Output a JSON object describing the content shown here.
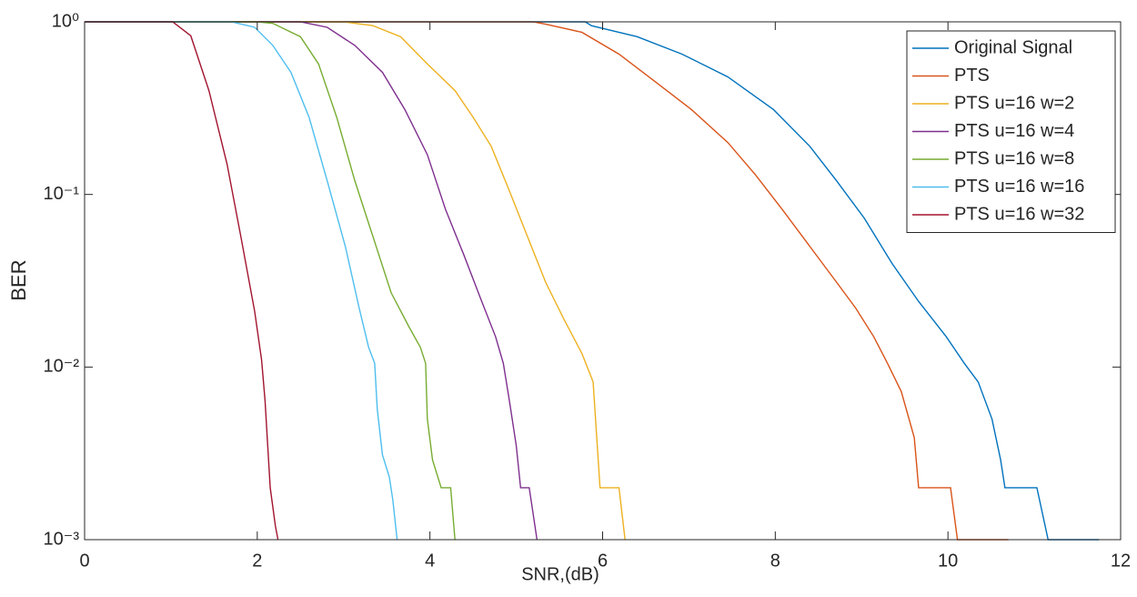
{
  "chart_data": {
    "type": "line",
    "xlabel": "SNR,(dB)",
    "ylabel": "BER",
    "yscale": "log",
    "xlim": [
      0,
      12
    ],
    "ylim": [
      0.001,
      1
    ],
    "xticks": [
      0,
      2,
      4,
      6,
      8,
      10,
      12
    ],
    "yticks": [
      {
        "value": 0.001,
        "label": "10⁻³"
      },
      {
        "value": 0.01,
        "label": "10⁻²"
      },
      {
        "value": 0.1,
        "label": "10⁻¹"
      },
      {
        "value": 1,
        "label": "10⁰"
      }
    ],
    "legend": "upper right",
    "series": [
      {
        "name": "Original Signal",
        "color": "#0072BD",
        "x": [
          0,
          5.8,
          5.87,
          6.4,
          6.92,
          7.45,
          7.98,
          8.4,
          8.71,
          9.03,
          9.35,
          9.66,
          9.98,
          10.19,
          10.35,
          10.51,
          10.61,
          10.66,
          11.03,
          11.16,
          11.75
        ],
        "values": [
          1,
          1,
          0.95,
          0.82,
          0.65,
          0.48,
          0.31,
          0.19,
          0.12,
          0.073,
          0.04,
          0.024,
          0.015,
          0.0105,
          0.0082,
          0.005,
          0.0029,
          0.002,
          0.002,
          0.001,
          0.001
        ]
      },
      {
        "name": "PTS",
        "color": "#D95319",
        "x": [
          0,
          5.2,
          5.34,
          5.76,
          6.19,
          6.61,
          7.03,
          7.45,
          7.77,
          8.08,
          8.4,
          8.71,
          8.93,
          9.14,
          9.3,
          9.46,
          9.61,
          9.66,
          10.03,
          10.11,
          10.7
        ],
        "values": [
          1,
          1,
          0.97,
          0.87,
          0.65,
          0.45,
          0.31,
          0.2,
          0.13,
          0.082,
          0.05,
          0.031,
          0.022,
          0.015,
          0.0105,
          0.0072,
          0.0039,
          0.002,
          0.002,
          0.001,
          0.001
        ]
      },
      {
        "name": "PTS u=16 w=2",
        "color": "#EDB120",
        "x": [
          0,
          3.0,
          3.34,
          3.66,
          3.97,
          4.29,
          4.5,
          4.71,
          4.92,
          5.13,
          5.34,
          5.55,
          5.76,
          5.89,
          5.97,
          6.19,
          6.26
        ],
        "values": [
          1,
          1,
          0.95,
          0.82,
          0.57,
          0.4,
          0.28,
          0.19,
          0.105,
          0.057,
          0.031,
          0.019,
          0.012,
          0.0082,
          0.002,
          0.002,
          0.001
        ]
      },
      {
        "name": "PTS u=16 w=4",
        "color": "#7E2F8E",
        "x": [
          0,
          2.5,
          2.81,
          3.13,
          3.45,
          3.71,
          3.97,
          4.18,
          4.39,
          4.6,
          4.76,
          4.85,
          4.92,
          5.0,
          5.05,
          5.15,
          5.24
        ],
        "values": [
          1,
          1,
          0.93,
          0.73,
          0.51,
          0.31,
          0.17,
          0.082,
          0.045,
          0.024,
          0.015,
          0.0105,
          0.0064,
          0.0035,
          0.002,
          0.002,
          0.001
        ]
      },
      {
        "name": "PTS u=16 w=8",
        "color": "#77AC30",
        "x": [
          0,
          2.0,
          2.18,
          2.5,
          2.71,
          2.92,
          3.13,
          3.34,
          3.55,
          3.76,
          3.89,
          3.95,
          3.97,
          4.03,
          4.13,
          4.24,
          4.29
        ],
        "values": [
          1,
          1,
          0.98,
          0.82,
          0.57,
          0.28,
          0.12,
          0.057,
          0.027,
          0.017,
          0.013,
          0.0105,
          0.005,
          0.0029,
          0.002,
          0.002,
          0.001
        ]
      },
      {
        "name": "PTS u=16 w=16",
        "color": "#4DBEEE",
        "x": [
          0,
          1.7,
          1.97,
          2.18,
          2.39,
          2.6,
          2.81,
          3.02,
          3.18,
          3.29,
          3.36,
          3.39,
          3.45,
          3.53,
          3.57,
          3.62
        ],
        "values": [
          1,
          1,
          0.93,
          0.73,
          0.51,
          0.28,
          0.12,
          0.05,
          0.022,
          0.013,
          0.0105,
          0.0057,
          0.0031,
          0.0023,
          0.0017,
          0.001
        ]
      },
      {
        "name": "PTS u=16 w=32",
        "color": "#A2142F",
        "x": [
          0,
          1.02,
          1.23,
          1.44,
          1.65,
          1.81,
          1.97,
          2.05,
          2.09,
          2.15,
          2.21,
          2.24
        ],
        "values": [
          1,
          1,
          0.83,
          0.4,
          0.15,
          0.057,
          0.021,
          0.011,
          0.0064,
          0.002,
          0.0012,
          0.001
        ]
      }
    ]
  }
}
